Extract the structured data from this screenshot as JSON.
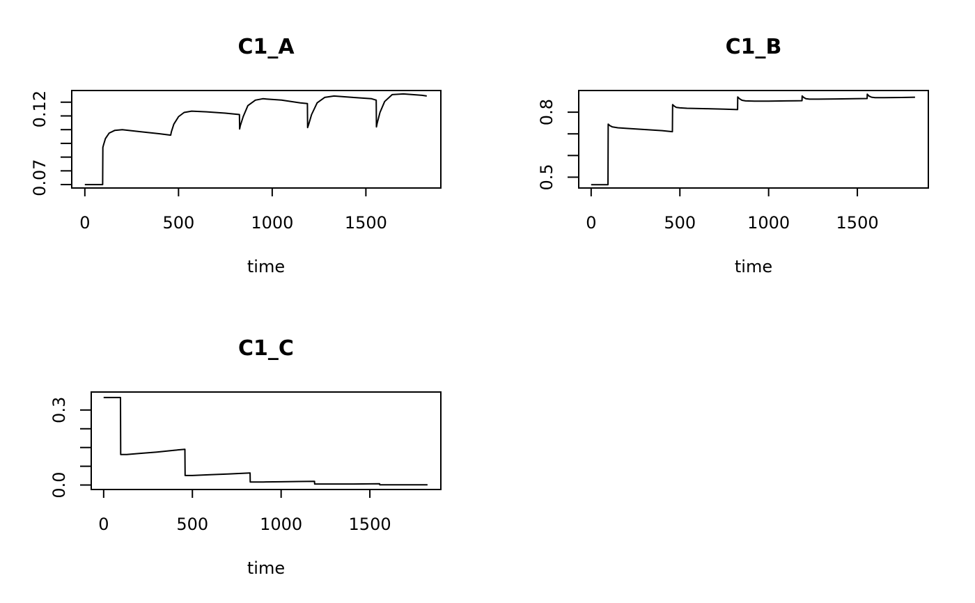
{
  "chart_data": [
    {
      "type": "line",
      "title": "C1_A",
      "xlabel": "time",
      "ylabel": "",
      "xlim": [
        -70,
        1900
      ],
      "ylim": [
        0.0625,
        0.1335
      ],
      "xticks": [
        0,
        500,
        1000,
        1500
      ],
      "xtick_labels": [
        "0",
        "500",
        "1000",
        "1500"
      ],
      "yticks": [
        0.065,
        0.075,
        0.085,
        0.095,
        0.105,
        0.115,
        0.125
      ],
      "yticks_labeled": [
        {
          "value": 0.07,
          "label": "0.07"
        },
        {
          "value": 0.12,
          "label": "0.12"
        }
      ],
      "series": [
        {
          "x": [
            0,
            95,
            96,
            100,
            110,
            130,
            160,
            200,
            300,
            400,
            458,
            462,
            475,
            500,
            530,
            570,
            650,
            750,
            825,
            826,
            830,
            845,
            870,
            910,
            950,
            1050,
            1150,
            1188,
            1189,
            1195,
            1210,
            1240,
            1280,
            1330,
            1430,
            1530,
            1555,
            1556,
            1560,
            1575,
            1600,
            1640,
            1700,
            1800,
            1825
          ],
          "y": [
            0.065,
            0.065,
            0.092,
            0.094,
            0.0985,
            0.1025,
            0.1045,
            0.105,
            0.1035,
            0.102,
            0.101,
            0.1035,
            0.109,
            0.1145,
            0.1175,
            0.1185,
            0.118,
            0.117,
            0.116,
            0.1055,
            0.108,
            0.1145,
            0.1225,
            0.1265,
            0.1275,
            0.1265,
            0.1245,
            0.124,
            0.1065,
            0.109,
            0.116,
            0.1245,
            0.1285,
            0.1295,
            0.1285,
            0.1275,
            0.1265,
            0.107,
            0.1095,
            0.1175,
            0.1255,
            0.1305,
            0.131,
            0.13,
            0.1295
          ]
        }
      ]
    },
    {
      "type": "line",
      "title": "C1_B",
      "xlabel": "time",
      "ylabel": "",
      "xlim": [
        -70,
        1900
      ],
      "ylim": [
        0.45,
        0.9
      ],
      "xticks": [
        0,
        500,
        1000,
        1500
      ],
      "xtick_labels": [
        "0",
        "500",
        "1000",
        "1500"
      ],
      "yticks": [
        0.5,
        0.6,
        0.7,
        0.8
      ],
      "yticks_labeled": [
        {
          "value": 0.5,
          "label": "0.5"
        },
        {
          "value": 0.8,
          "label": "0.8"
        }
      ],
      "series": [
        {
          "x": [
            0,
            95,
            96,
            105,
            120,
            150,
            200,
            300,
            400,
            458,
            459,
            468,
            480,
            500,
            540,
            650,
            750,
            825,
            826,
            836,
            850,
            870,
            920,
            1000,
            1100,
            1188,
            1189,
            1198,
            1210,
            1230,
            1280,
            1380,
            1480,
            1555,
            1556,
            1565,
            1580,
            1600,
            1650,
            1750,
            1825
          ],
          "y": [
            0.465,
            0.465,
            0.745,
            0.738,
            0.732,
            0.728,
            0.725,
            0.72,
            0.715,
            0.71,
            0.835,
            0.828,
            0.822,
            0.82,
            0.818,
            0.816,
            0.814,
            0.812,
            0.87,
            0.862,
            0.855,
            0.852,
            0.851,
            0.851,
            0.852,
            0.853,
            0.875,
            0.868,
            0.862,
            0.86,
            0.86,
            0.861,
            0.862,
            0.863,
            0.883,
            0.875,
            0.869,
            0.867,
            0.867,
            0.868,
            0.869
          ]
        }
      ]
    },
    {
      "type": "line",
      "title": "C1_C",
      "xlabel": "time",
      "ylabel": "",
      "xlim": [
        -70,
        1900
      ],
      "ylim": [
        -0.018,
        0.372
      ],
      "xticks": [
        0,
        500,
        1000,
        1500
      ],
      "xtick_labels": [
        "0",
        "500",
        "1000",
        "1500"
      ],
      "yticks": [
        0.0,
        0.075,
        0.15,
        0.225,
        0.3
      ],
      "yticks_labeled": [
        {
          "value": 0.0,
          "label": "0.0"
        },
        {
          "value": 0.3,
          "label": "0.3"
        }
      ],
      "series": [
        {
          "x": [
            0,
            95,
            96,
            130,
            200,
            300,
            400,
            458,
            459,
            500,
            600,
            700,
            825,
            826,
            900,
            1000,
            1100,
            1188,
            1189,
            1300,
            1400,
            1555,
            1556,
            1700,
            1825
          ],
          "y": [
            0.35,
            0.35,
            0.122,
            0.122,
            0.126,
            0.132,
            0.139,
            0.143,
            0.038,
            0.038,
            0.041,
            0.044,
            0.048,
            0.012,
            0.012,
            0.013,
            0.014,
            0.015,
            0.004,
            0.004,
            0.004,
            0.005,
            0.001,
            0.001,
            0.001
          ]
        }
      ]
    }
  ]
}
